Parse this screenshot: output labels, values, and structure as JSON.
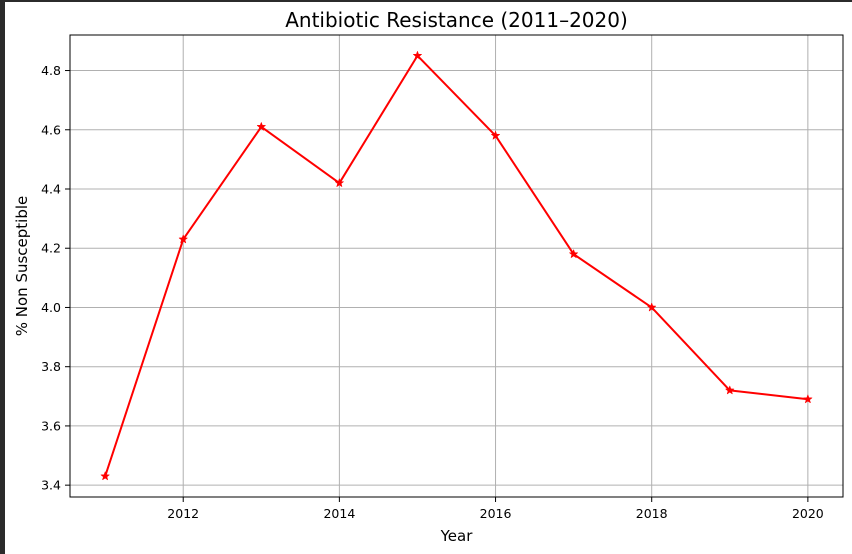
{
  "chart_data": {
    "type": "line",
    "title": "Antibiotic Resistance (2011–2020)",
    "xlabel": "Year",
    "ylabel": "% Non Susceptible",
    "x": [
      2011,
      2012,
      2013,
      2014,
      2015,
      2016,
      2017,
      2018,
      2019,
      2020
    ],
    "series": [
      {
        "values": [
          3.43,
          4.23,
          4.61,
          4.42,
          4.85,
          4.58,
          4.18,
          4.0,
          3.72,
          3.69
        ]
      }
    ],
    "xlim": [
      2010.55,
      2020.45
    ],
    "ylim": [
      3.36,
      4.92
    ],
    "x_ticks": [
      2012,
      2014,
      2016,
      2018,
      2020
    ],
    "x_tick_labels": [
      "2012",
      "2014",
      "2016",
      "2018",
      "2020"
    ],
    "y_ticks": [
      3.4,
      3.6,
      3.8,
      4.0,
      4.2,
      4.4,
      4.6,
      4.8
    ],
    "y_tick_labels": [
      "3.4",
      "3.6",
      "3.8",
      "4.0",
      "4.2",
      "4.4",
      "4.6",
      "4.8"
    ],
    "grid": true,
    "marker": "star",
    "colors": {
      "line": "#ff0000",
      "grid": "#b0b0b0",
      "axes": "#000000",
      "frame": "#2b2b2b"
    }
  }
}
